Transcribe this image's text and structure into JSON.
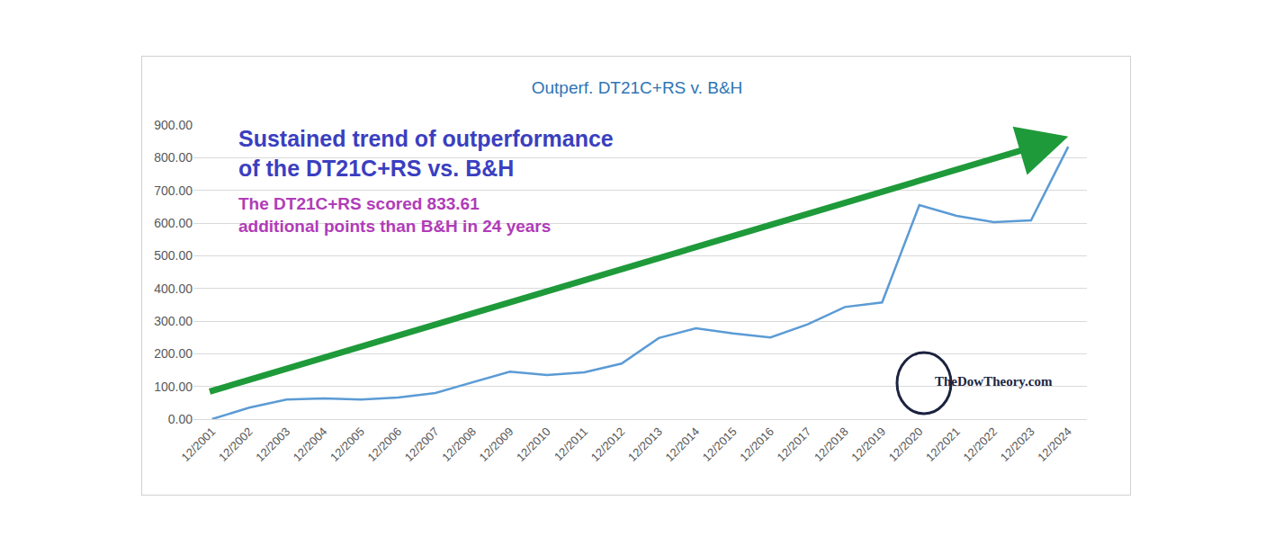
{
  "chart_data": {
    "type": "line",
    "title": "Outperf. DT21C+RS v. B&H",
    "categories": [
      "12/2001",
      "12/2002",
      "12/2003",
      "12/2004",
      "12/2005",
      "12/2006",
      "12/2007",
      "12/2008",
      "12/2009",
      "12/2010",
      "12/2011",
      "12/2012",
      "12/2013",
      "12/2014",
      "12/2015",
      "12/2016",
      "12/2017",
      "12/2018",
      "12/2019",
      "12/2020",
      "12/2021",
      "12/2022",
      "12/2023",
      "12/2024"
    ],
    "values": [
      0,
      35,
      60,
      63,
      60,
      66,
      80,
      112,
      145,
      135,
      143,
      170,
      248,
      278,
      262,
      250,
      290,
      343,
      357,
      655,
      622,
      603,
      608,
      833.61
    ],
    "color": "#5b9bd5",
    "ylim": [
      0,
      900
    ],
    "yticks": [
      {
        "value": 0,
        "label": "0.00"
      },
      {
        "value": 100,
        "label": "100.00"
      },
      {
        "value": 200,
        "label": "200.00"
      },
      {
        "value": 300,
        "label": "300.00"
      },
      {
        "value": 400,
        "label": "400.00"
      },
      {
        "value": 500,
        "label": "500.00"
      },
      {
        "value": 600,
        "label": "600.00"
      },
      {
        "value": 700,
        "label": "700.00"
      },
      {
        "value": 800,
        "label": "800.00"
      },
      {
        "value": 900,
        "label": "900.00"
      }
    ],
    "grid": true,
    "annotations": [
      {
        "text": [
          "Sustained trend of outperformance",
          "of the DT21C+RS vs. B&H"
        ],
        "color": "#3b3fc0"
      },
      {
        "text": [
          "The DT21C+RS scored 833.61",
          "additional points than B&H in 24 years"
        ],
        "color": "#b03cb8"
      },
      {
        "text": [
          "TheDowTheory.com"
        ],
        "color": "#1c2340"
      }
    ]
  }
}
